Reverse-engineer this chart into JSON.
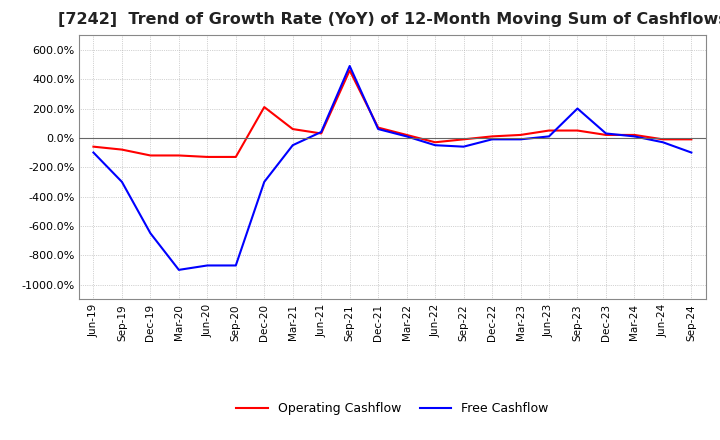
{
  "title": "[7242]  Trend of Growth Rate (YoY) of 12-Month Moving Sum of Cashflows",
  "title_fontsize": 11.5,
  "ylim": [
    -1100,
    700
  ],
  "yticks": [
    -1000,
    -800,
    -600,
    -400,
    -200,
    0,
    200,
    400,
    600
  ],
  "background_color": "#ffffff",
  "grid_color": "#aaaaaa",
  "operating_color": "#ff0000",
  "free_color": "#0000ff",
  "legend_labels": [
    "Operating Cashflow",
    "Free Cashflow"
  ],
  "x_labels": [
    "Jun-19",
    "Sep-19",
    "Dec-19",
    "Mar-20",
    "Jun-20",
    "Sep-20",
    "Dec-20",
    "Mar-21",
    "Jun-21",
    "Sep-21",
    "Dec-21",
    "Mar-22",
    "Jun-22",
    "Sep-22",
    "Dec-22",
    "Mar-23",
    "Jun-23",
    "Sep-23",
    "Dec-23",
    "Mar-24",
    "Jun-24",
    "Sep-24"
  ],
  "operating_cashflow": [
    -60,
    -80,
    -120,
    -120,
    -130,
    -130,
    210,
    60,
    30,
    460,
    70,
    20,
    -30,
    -10,
    10,
    20,
    50,
    50,
    20,
    20,
    -10,
    -10
  ],
  "free_cashflow": [
    -100,
    -300,
    -650,
    -900,
    -870,
    -870,
    -300,
    -50,
    40,
    490,
    60,
    10,
    -50,
    -60,
    -10,
    -10,
    10,
    200,
    30,
    10,
    -30,
    -100
  ]
}
